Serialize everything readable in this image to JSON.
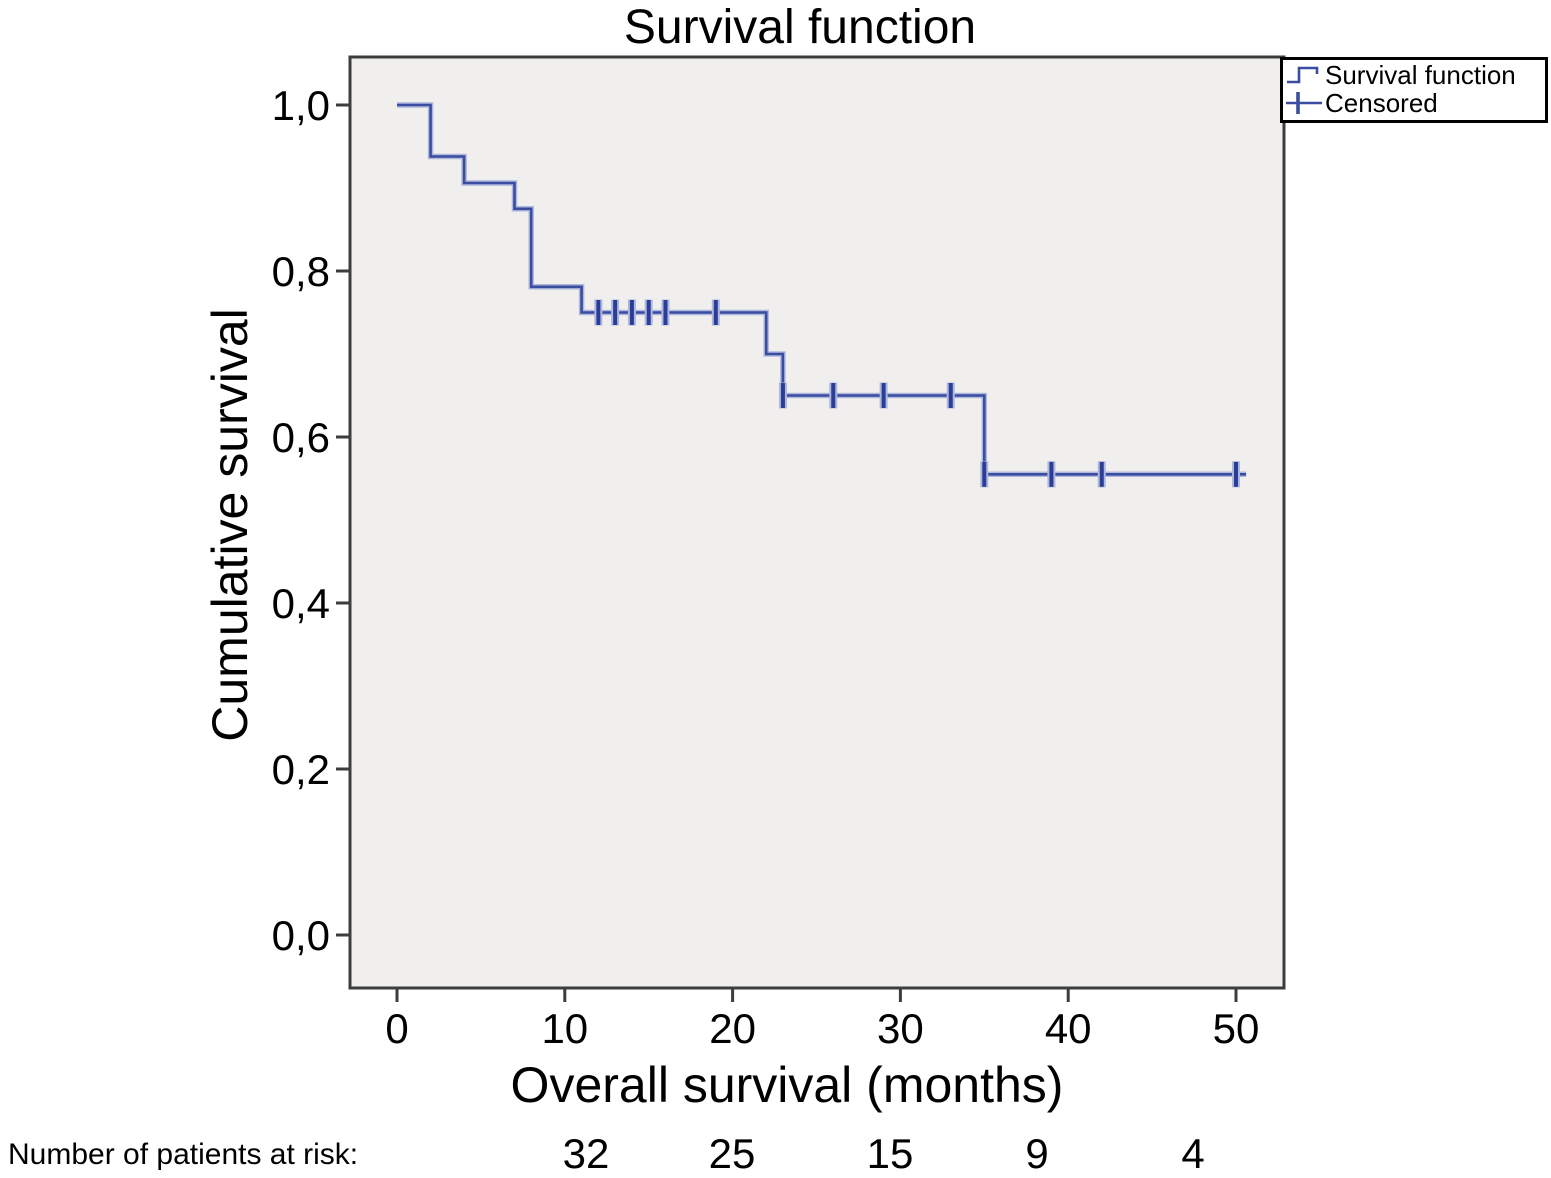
{
  "chart_data": {
    "type": "line",
    "subtype": "kaplan-meier-step",
    "title": "Survival function",
    "xlabel": "Overall survival (months)",
    "ylabel": "Cumulative survival",
    "grid": false,
    "xlim": [
      -3,
      53
    ],
    "ylim": [
      -0.06,
      1.06
    ],
    "x_ticks": [
      {
        "value": 0,
        "label": "0"
      },
      {
        "value": 10,
        "label": "10"
      },
      {
        "value": 20,
        "label": "20"
      },
      {
        "value": 30,
        "label": "30"
      },
      {
        "value": 40,
        "label": "40"
      },
      {
        "value": 50,
        "label": "50"
      }
    ],
    "y_ticks": [
      {
        "value": 0.0,
        "label": "0,0"
      },
      {
        "value": 0.2,
        "label": "0,2"
      },
      {
        "value": 0.4,
        "label": "0,4"
      },
      {
        "value": 0.6,
        "label": "0,6"
      },
      {
        "value": 0.8,
        "label": "0,8"
      },
      {
        "value": 1.0,
        "label": "1,0"
      }
    ],
    "series": [
      {
        "name": "Survival function",
        "type": "step",
        "steps": [
          [
            0,
            1.0
          ],
          [
            2,
            0.938
          ],
          [
            4,
            0.906
          ],
          [
            7,
            0.875
          ],
          [
            8,
            0.781
          ],
          [
            11,
            0.75
          ],
          [
            22,
            0.7
          ],
          [
            23,
            0.65
          ],
          [
            35,
            0.555
          ]
        ],
        "end_x": 50.6
      }
    ],
    "censored": {
      "name": "Censored",
      "points": [
        [
          12,
          0.75
        ],
        [
          13,
          0.75
        ],
        [
          14,
          0.75
        ],
        [
          15,
          0.75
        ],
        [
          16,
          0.75
        ],
        [
          19,
          0.75
        ],
        [
          23,
          0.65
        ],
        [
          26,
          0.65
        ],
        [
          29,
          0.65
        ],
        [
          33,
          0.65
        ],
        [
          35,
          0.555
        ],
        [
          39,
          0.555
        ],
        [
          42,
          0.555
        ],
        [
          50,
          0.555
        ]
      ]
    },
    "legend_position": "top-right",
    "colors": {
      "line": "#3a4da0",
      "line_halo": "#aeb7dc",
      "censor": "#2c3d97",
      "plot_bg": "#f0efed",
      "frame": "#3d3d3d",
      "text": "#000000"
    }
  },
  "legend": {
    "items": [
      {
        "label": "Survival function",
        "icon": "step-line-icon"
      },
      {
        "label": "Censored",
        "icon": "censor-cross-icon"
      }
    ]
  },
  "risk_table": {
    "label": "Number of patients at risk:",
    "values": [
      "32",
      "25",
      "15",
      "9",
      "4"
    ]
  }
}
